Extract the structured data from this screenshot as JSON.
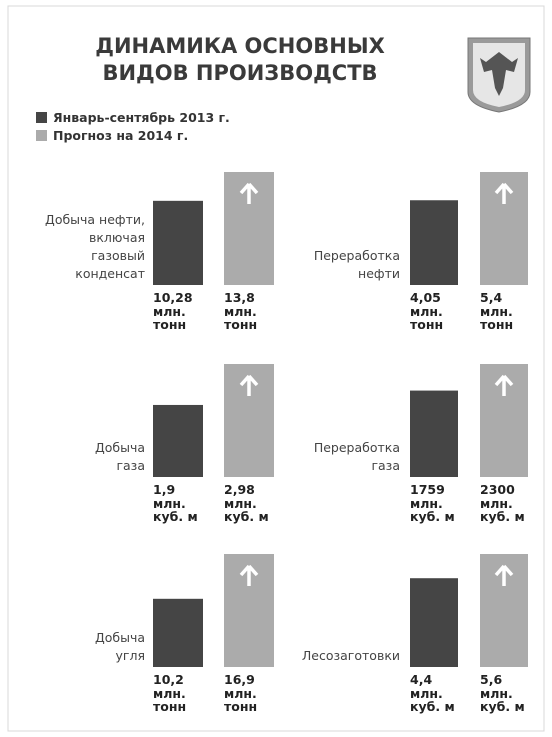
{
  "title": [
    "ДИНАМИКА ОСНОВНЫХ",
    "ВИДОВ ПРОИЗВОДСТВ"
  ],
  "legend": [
    {
      "name": "Январь-сентябрь 2013 г.",
      "color": "#454545"
    },
    {
      "name": "Прогноз на 2014 г.",
      "color": "#ababab"
    }
  ],
  "chart_data": [
    {
      "type": "bar",
      "title": [
        "Добыча нефти,",
        "включая",
        "газовый",
        "конденсат"
      ],
      "values": [
        10.28,
        13.8
      ],
      "value_labels": [
        "10,28",
        "13,8"
      ],
      "unit": [
        "млн.",
        "тонн"
      ]
    },
    {
      "type": "bar",
      "title": [
        "Переработка",
        "нефти"
      ],
      "values": [
        4.05,
        5.4
      ],
      "value_labels": [
        "4,05",
        "5,4"
      ],
      "unit": [
        "млн.",
        "тонн"
      ]
    },
    {
      "type": "bar",
      "title": [
        "Добыча",
        "газа"
      ],
      "values": [
        1.9,
        2.98
      ],
      "value_labels": [
        "1,9",
        "2,98"
      ],
      "unit": [
        "млн.",
        "куб. м"
      ]
    },
    {
      "type": "bar",
      "title": [
        "Переработка",
        "газа"
      ],
      "values": [
        1759,
        2300
      ],
      "unit": [
        "млн.",
        "куб. м"
      ]
    },
    {
      "type": "bar",
      "title": [
        "Добыча",
        "угля"
      ],
      "values": [
        10.2,
        16.9
      ],
      "value_labels": [
        "10,2",
        "16,9"
      ],
      "unit": [
        "млн.",
        "тонн"
      ]
    },
    {
      "type": "bar",
      "title": [
        "Лесозаготовки"
      ],
      "values": [
        4.4,
        5.6
      ],
      "value_labels": [
        "4,4",
        "5,6"
      ],
      "unit": [
        "млн.",
        "куб. м"
      ]
    }
  ]
}
